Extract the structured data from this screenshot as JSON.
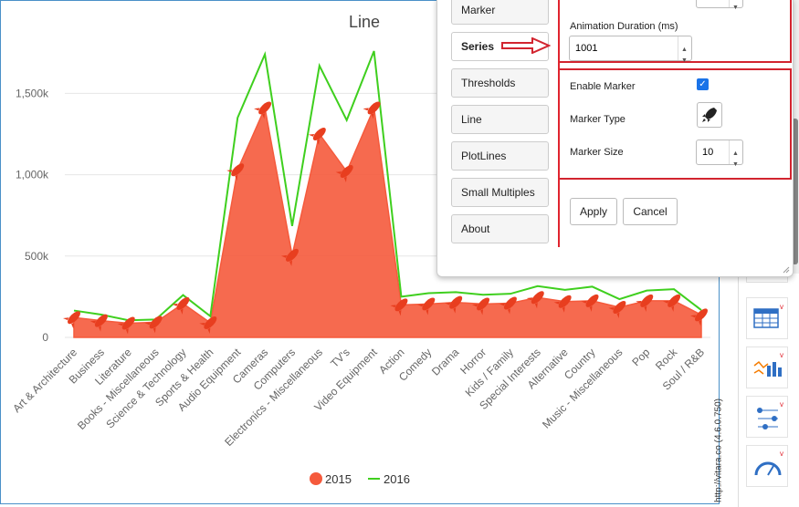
{
  "chart_data": {
    "type": "area",
    "title": "Line",
    "categories": [
      "Art & Architecture",
      "Business",
      "Literature",
      "Books - Miscellaneous",
      "Science & Technology",
      "Sports & Health",
      "Audio Equipment",
      "Cameras",
      "Computers",
      "Electronics - Miscellaneous",
      "TV's",
      "Video Equipment",
      "Action",
      "Comedy",
      "Drama",
      "Horror",
      "Kids / Family",
      "Special Interests",
      "Alternative",
      "Country",
      "Music - Miscellaneous",
      "Pop",
      "Rock",
      "Soul / R&B"
    ],
    "series": [
      {
        "name": "2015",
        "type": "area",
        "color": "#f55a3c",
        "values": [
          122000,
          103000,
          87000,
          93000,
          208000,
          90000,
          1030000,
          1410000,
          505000,
          1250000,
          1020000,
          1410000,
          200000,
          205000,
          215000,
          205000,
          210000,
          245000,
          220000,
          225000,
          185000,
          225000,
          225000,
          138000
        ]
      },
      {
        "name": "2016",
        "type": "line",
        "color": "#3fcf1e",
        "values": [
          165000,
          140000,
          105000,
          110000,
          260000,
          130000,
          1350000,
          1740000,
          685000,
          1670000,
          1335000,
          1760000,
          250000,
          272000,
          278000,
          262000,
          268000,
          315000,
          292000,
          312000,
          235000,
          288000,
          296000,
          168000
        ]
      }
    ],
    "y_ticks": [
      "0",
      "500k",
      "1,000k",
      "1,500k"
    ],
    "ylim": [
      0,
      1900000
    ],
    "legend_position": "bottom"
  },
  "watermark": "http://vitara.co (4.6.0.750)",
  "panel": {
    "menu": [
      "Marker",
      "Series",
      "Thresholds",
      "Line",
      "PlotLines",
      "Small Multiples",
      "About"
    ],
    "animation_label": "Animation Duration (ms)",
    "animation_value": "1001",
    "enable_marker_label": "Enable Marker",
    "marker_type_label": "Marker Type",
    "marker_size_label": "Marker Size",
    "marker_size_value": "10",
    "apply_label": "Apply",
    "cancel_label": "Cancel"
  },
  "icons": {
    "marker": "rocket-icon",
    "strip": [
      "calendar-icon",
      "table-chart-icon",
      "bar-line-chart-icon",
      "dot-plot-icon",
      "gauge-icon"
    ]
  },
  "colors": {
    "accent_red": "#d2242f",
    "area": "#f55a3c",
    "line": "#3fcf1e"
  }
}
